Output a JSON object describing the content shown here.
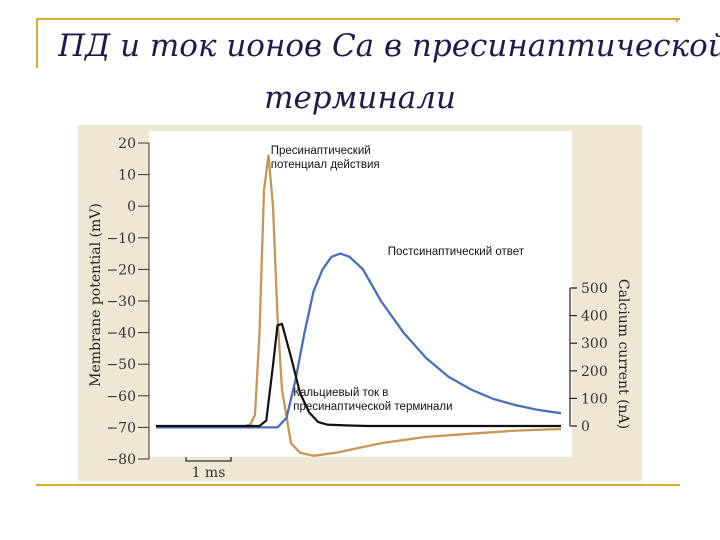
{
  "slide": {
    "title_line1": "ПД и ток ионов Ca в пресинаптической",
    "title_line2": "терминали"
  },
  "colors": {
    "presynaptic": "#c89656",
    "postsynaptic": "#4a6fb8",
    "calcium": "#111111",
    "panel_bg": "#ede7d3",
    "plot_bg": "#ffffff",
    "accent": "#d9a935"
  },
  "chart_data": {
    "type": "line",
    "title": "",
    "left_axis": {
      "label": "Membrane potential (mV)",
      "ylim": [
        -80,
        20
      ],
      "ticks": [
        "20",
        "10",
        "0",
        "−10",
        "−20",
        "−30",
        "−40",
        "−50",
        "−60",
        "−70",
        "−80"
      ]
    },
    "right_axis": {
      "label": "Calcium current (nA)",
      "ylim": [
        0,
        500
      ],
      "ticks": [
        "500",
        "400",
        "300",
        "200",
        "100",
        "0"
      ]
    },
    "scale_bar": {
      "label": "1 ms",
      "length_ms": 1
    },
    "xlim_ms": [
      0,
      9
    ],
    "series": [
      {
        "name": "Пресинаптический потенциал действия",
        "axis": "left",
        "x": [
          0,
          1.9,
          2.1,
          2.2,
          2.3,
          2.4,
          2.5,
          2.6,
          2.7,
          2.8,
          3.0,
          3.2,
          3.5,
          4.0,
          5.0,
          6.0,
          7.0,
          8.0,
          9.0
        ],
        "y": [
          -70,
          -70,
          -69,
          -66,
          -40,
          5,
          16,
          0,
          -35,
          -58,
          -75,
          -78,
          -79,
          -78,
          -75,
          -73,
          -72,
          -71,
          -70.5
        ]
      },
      {
        "name": "Постсинаптический ответ",
        "axis": "left",
        "x": [
          0,
          2.7,
          2.9,
          3.1,
          3.3,
          3.5,
          3.7,
          3.9,
          4.1,
          4.3,
          4.6,
          5.0,
          5.5,
          6.0,
          6.5,
          7.0,
          7.5,
          8.0,
          8.5,
          9.0
        ],
        "y": [
          -70,
          -70,
          -67,
          -55,
          -40,
          -27,
          -20,
          -16,
          -15,
          -16,
          -20,
          -30,
          -40,
          -48,
          -54,
          -58,
          -61,
          -63,
          -64.5,
          -65.5
        ]
      },
      {
        "name": "Кальциевый ток в пресинаптической терминали",
        "axis": "right",
        "x": [
          0,
          2.3,
          2.45,
          2.6,
          2.7,
          2.8,
          3.0,
          3.2,
          3.4,
          3.6,
          3.8,
          4.2,
          4.7,
          9.0
        ],
        "y": [
          0,
          0,
          20,
          220,
          365,
          370,
          250,
          120,
          50,
          15,
          5,
          2,
          0,
          0
        ]
      }
    ],
    "annotations": [
      {
        "lines": [
          "Пресинаптический",
          "потенциал действия"
        ],
        "x": 2.55,
        "y": 16.5
      },
      {
        "lines": [
          "Постсинаптический ответ"
        ],
        "x": 5.15,
        "y": -15.5
      },
      {
        "lines": [
          "Кальциевый ток в",
          "пресинаптической терминали"
        ],
        "x": 3.05,
        "y": -60
      }
    ],
    "grid": false,
    "legend": "none"
  }
}
